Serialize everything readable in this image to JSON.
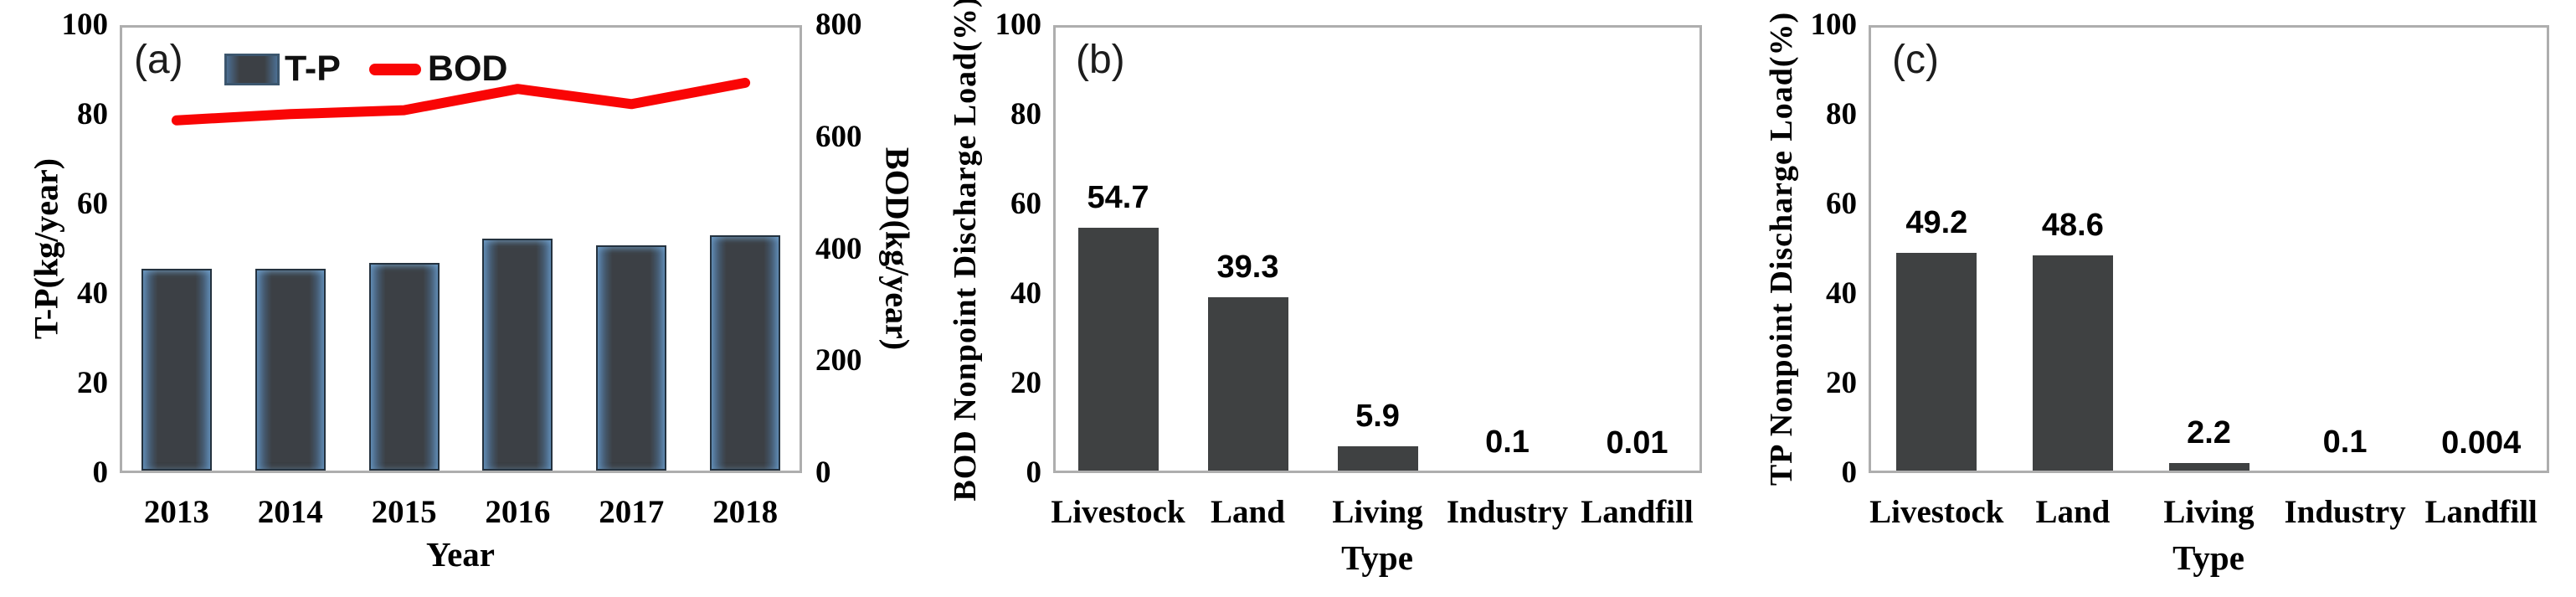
{
  "colors": {
    "bod_line": "#f90505",
    "bar_a_fill": "#3c4045",
    "bar_a_edge": "#4c6f93",
    "bar_bc_fill": "#3f4142",
    "plot_border": "#aeaeae",
    "text": "#000000"
  },
  "chart_data": [
    {
      "id": "a",
      "type": "bar+line",
      "panel_label": "(a)",
      "categories": [
        "2013",
        "2014",
        "2015",
        "2016",
        "2017",
        "2018"
      ],
      "series": [
        {
          "name": "T-P",
          "type": "bar",
          "axis": "left",
          "values": [
            45.6,
            45.6,
            46.9,
            52.3,
            50.8,
            53.0
          ]
        },
        {
          "name": "BOD",
          "type": "line",
          "axis": "right",
          "values": [
            630,
            641,
            648,
            686,
            659,
            697
          ]
        }
      ],
      "left_axis": {
        "title": "T-P(kg/year)",
        "ticks": [
          0,
          20,
          40,
          60,
          80,
          100
        ],
        "range": [
          0,
          100
        ]
      },
      "right_axis": {
        "title": "BOD(kg/year)",
        "ticks": [
          0,
          200,
          400,
          600,
          800
        ],
        "range": [
          0,
          800
        ]
      },
      "x_axis_title": "Year",
      "legend": [
        "T-P",
        "BOD"
      ],
      "grid": false,
      "legend_position": "top-inside"
    },
    {
      "id": "b",
      "type": "bar",
      "panel_label": "(b)",
      "categories": [
        "Livestock",
        "Land",
        "Living",
        "Industry",
        "Landfill"
      ],
      "values": [
        54.7,
        39.3,
        5.9,
        0.1,
        0.01
      ],
      "value_labels": [
        "54.7",
        "39.3",
        "5.9",
        "0.1",
        "0.01"
      ],
      "y_axis": {
        "title": "BOD Nonpoint Discharge Load(%)",
        "ticks": [
          0,
          20,
          40,
          60,
          80,
          100
        ],
        "range": [
          0,
          100
        ]
      },
      "x_axis_title": "Type",
      "grid": false
    },
    {
      "id": "c",
      "type": "bar",
      "panel_label": "(c)",
      "categories": [
        "Livestock",
        "Land",
        "Living",
        "Industry",
        "Landfill"
      ],
      "values": [
        49.2,
        48.6,
        2.2,
        0.1,
        0.004
      ],
      "value_labels": [
        "49.2",
        "48.6",
        "2.2",
        "0.1",
        "0.004"
      ],
      "y_axis": {
        "title": "TP Nonpoint Discharge Load(%)",
        "ticks": [
          0,
          20,
          40,
          60,
          80,
          100
        ],
        "range": [
          0,
          100
        ]
      },
      "x_axis_title": "Type",
      "grid": false
    }
  ]
}
